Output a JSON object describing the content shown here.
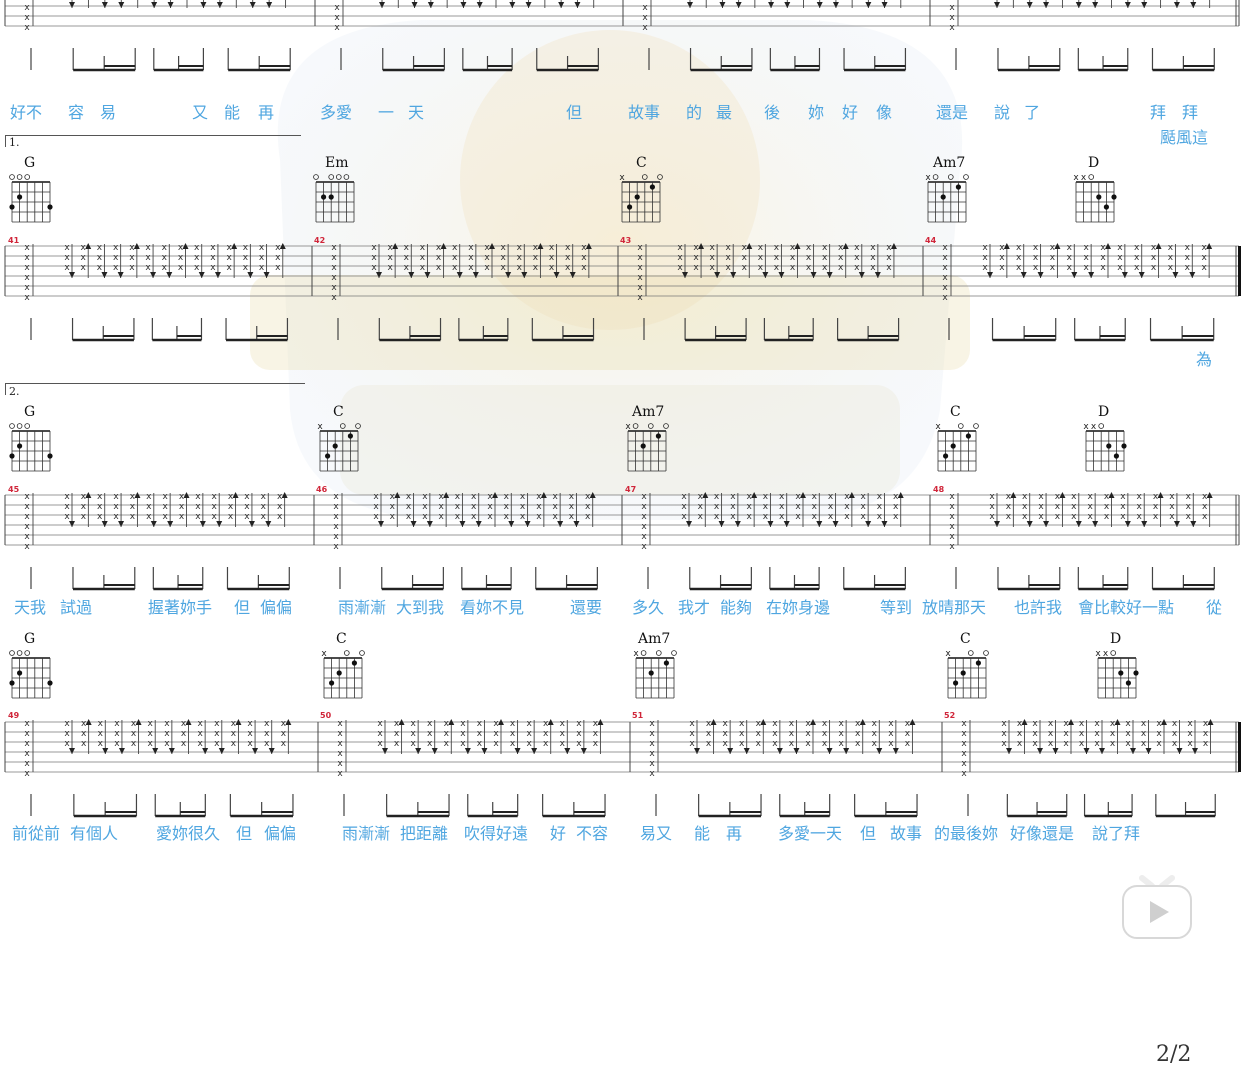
{
  "page": {
    "number": "2/2"
  },
  "volta_labels": [
    "1.",
    "2."
  ],
  "systems": [
    {
      "chords": [],
      "measures": [],
      "lyrics": [
        "好不",
        "容",
        "易",
        "又",
        "能",
        "再",
        "多愛",
        "一",
        "天",
        "但",
        "故事",
        "的",
        "最",
        "後",
        "妳",
        "好",
        "像",
        "還是",
        "說",
        "了",
        "拜",
        "拜",
        "颳風這"
      ]
    },
    {
      "chords": [
        "G",
        "Em",
        "C",
        "Am7",
        "D"
      ],
      "measures": [
        "41",
        "42",
        "43",
        "44"
      ],
      "lyrics": [
        "為"
      ]
    },
    {
      "chords": [
        "G",
        "C",
        "Am7",
        "C",
        "D"
      ],
      "measures": [
        "45",
        "46",
        "47",
        "48"
      ],
      "lyrics": [
        "天我",
        "試過",
        "握著妳手",
        "但",
        "偏偏",
        "雨漸漸",
        "大到我",
        "看妳不見",
        "還要",
        "多久",
        "我才",
        "能夠",
        "在妳身邊",
        "等到",
        "放晴那天",
        "也許我",
        "會比較好一點",
        "從"
      ]
    },
    {
      "chords": [
        "G",
        "C",
        "Am7",
        "C",
        "D"
      ],
      "measures": [
        "49",
        "50",
        "51",
        "52"
      ],
      "lyrics": [
        "前從前",
        "有個人",
        "愛妳很久",
        "但",
        "偏偏",
        "雨漸漸",
        "把距離",
        "吹得好遠",
        "好",
        "不容",
        "易又",
        "能",
        "再",
        "多愛一天",
        "但",
        "故事",
        "的最後妳",
        "好像還是",
        "說了拜"
      ]
    }
  ],
  "colors": {
    "lyric": "#4fa6e0",
    "measure_number": "#d0263a",
    "staff": "#444444"
  },
  "icons": {
    "play": "play-icon"
  }
}
